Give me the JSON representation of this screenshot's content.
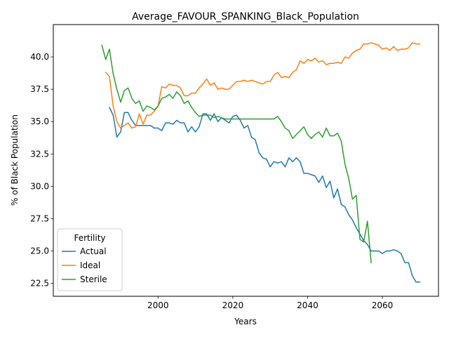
{
  "chart_data": {
    "type": "line",
    "title": "Average_FAVOUR_SPANKING_Black_Population",
    "xlabel": "Years",
    "ylabel": "% of Black Population",
    "xlim": [
      1972,
      2075
    ],
    "ylim": [
      21.5,
      42.5
    ],
    "xticks": [
      2000,
      2020,
      2040,
      2060
    ],
    "yticks": [
      22.5,
      25.0,
      27.5,
      30.0,
      32.5,
      35.0,
      37.5,
      40.0
    ],
    "grid": false,
    "legend": {
      "title": "Fertility",
      "position": "lower-left"
    },
    "series": [
      {
        "name": "Actual",
        "color": "#1f77b4",
        "x": [
          1987,
          1988,
          1989,
          1990,
          1991,
          1992,
          1993,
          1994,
          1995,
          1996,
          1997,
          1998,
          1999,
          2000,
          2001,
          2002,
          2003,
          2004,
          2005,
          2006,
          2007,
          2008,
          2009,
          2010,
          2011,
          2012,
          2013,
          2014,
          2015,
          2016,
          2017,
          2018,
          2019,
          2020,
          2021,
          2022,
          2023,
          2024,
          2025,
          2026,
          2027,
          2028,
          2029,
          2030,
          2031,
          2032,
          2033,
          2034,
          2035,
          2036,
          2037,
          2038,
          2039,
          2040,
          2041,
          2042,
          2043,
          2044,
          2045,
          2046,
          2047,
          2048,
          2049,
          2050,
          2051,
          2052,
          2053,
          2054,
          2055,
          2056,
          2057,
          2058,
          2059,
          2060,
          2061,
          2062,
          2063,
          2064,
          2065,
          2066,
          2067,
          2068,
          2069,
          2070
        ],
        "values": [
          36.1,
          35.5,
          33.8,
          34.2,
          35.7,
          35.7,
          35.1,
          34.7,
          34.7,
          34.7,
          34.7,
          34.7,
          34.5,
          34.5,
          34.3,
          34.9,
          34.9,
          34.8,
          35.1,
          34.9,
          34.9,
          34.2,
          34.6,
          34.2,
          34.6,
          35.6,
          35.6,
          35.1,
          35.6,
          35.0,
          35.3,
          35.1,
          34.9,
          35.4,
          35.5,
          35.1,
          34.5,
          34.7,
          33.8,
          33.6,
          32.6,
          32.2,
          32.1,
          31.5,
          31.9,
          31.8,
          31.9,
          31.5,
          32.2,
          31.9,
          32.2,
          31.9,
          31.0,
          31.0,
          30.9,
          30.8,
          30.3,
          30.8,
          29.9,
          30.4,
          29.1,
          29.8,
          28.6,
          28.4,
          27.8,
          27.4,
          26.8,
          26.3,
          25.8,
          25.5,
          25.0,
          25.0,
          25.0,
          24.8,
          25.0,
          25.0,
          25.1,
          25.0,
          24.8,
          24.1,
          24.1,
          23.1,
          22.6,
          22.6
        ]
      },
      {
        "name": "Ideal",
        "color": "#ff7f0e",
        "x": [
          1986,
          1987,
          1988,
          1989,
          1990,
          1991,
          1992,
          1993,
          1994,
          1995,
          1996,
          1997,
          1998,
          1999,
          2000,
          2001,
          2002,
          2003,
          2004,
          2005,
          2006,
          2007,
          2008,
          2009,
          2010,
          2011,
          2012,
          2013,
          2014,
          2015,
          2016,
          2017,
          2018,
          2019,
          2020,
          2021,
          2022,
          2023,
          2024,
          2025,
          2026,
          2027,
          2028,
          2029,
          2030,
          2031,
          2032,
          2033,
          2034,
          2035,
          2036,
          2037,
          2038,
          2039,
          2040,
          2041,
          2042,
          2043,
          2044,
          2045,
          2046,
          2047,
          2048,
          2049,
          2050,
          2051,
          2052,
          2053,
          2054,
          2055,
          2056,
          2057,
          2058,
          2059,
          2060,
          2061,
          2062,
          2063,
          2064,
          2065,
          2066,
          2067,
          2068,
          2069,
          2070
        ],
        "values": [
          38.8,
          38.5,
          36.2,
          35.0,
          34.5,
          34.7,
          34.9,
          34.5,
          34.6,
          35.6,
          34.8,
          35.5,
          35.5,
          35.8,
          36.2,
          37.7,
          37.6,
          37.9,
          37.8,
          37.8,
          37.6,
          37.0,
          37.0,
          37.2,
          37.2,
          37.6,
          37.9,
          38.3,
          37.8,
          38.0,
          37.5,
          37.6,
          37.5,
          37.5,
          37.8,
          38.1,
          38.1,
          38.2,
          38.1,
          38.2,
          38.1,
          38.0,
          37.9,
          38.1,
          38.1,
          38.6,
          38.8,
          38.4,
          38.5,
          38.4,
          38.8,
          39.0,
          39.7,
          39.5,
          39.8,
          39.7,
          39.9,
          39.6,
          39.7,
          39.4,
          39.5,
          39.5,
          39.6,
          39.5,
          40.0,
          39.9,
          40.3,
          40.5,
          40.6,
          41.0,
          41.0,
          41.1,
          41.0,
          40.9,
          40.6,
          40.7,
          40.5,
          40.8,
          40.5,
          40.6,
          40.6,
          40.7,
          41.1,
          41.0,
          41.0
        ]
      },
      {
        "name": "Sterile",
        "color": "#2ca02c",
        "x": [
          1985,
          1986,
          1987,
          1988,
          1989,
          1990,
          1991,
          1992,
          1993,
          1994,
          1995,
          1996,
          1997,
          1998,
          1999,
          2000,
          2001,
          2002,
          2003,
          2004,
          2005,
          2006,
          2007,
          2008,
          2009,
          2010,
          2011,
          2012,
          2013,
          2014,
          2015,
          2016,
          2017,
          2018,
          2019,
          2020,
          2021,
          2022,
          2023,
          2024,
          2025,
          2026,
          2027,
          2028,
          2029,
          2030,
          2031,
          2032,
          2033,
          2034,
          2035,
          2036,
          2037,
          2038,
          2039,
          2040,
          2041,
          2042,
          2043,
          2044,
          2045,
          2046,
          2047,
          2048,
          2049,
          2050,
          2051,
          2052,
          2053,
          2054,
          2055,
          2056,
          2057
        ],
        "values": [
          40.9,
          39.8,
          40.6,
          38.7,
          37.5,
          36.5,
          37.4,
          37.6,
          36.8,
          36.4,
          36.6,
          35.8,
          36.2,
          36.1,
          35.9,
          36.2,
          36.8,
          36.9,
          37.1,
          36.8,
          37.3,
          37.0,
          36.4,
          36.6,
          36.1,
          35.7,
          35.4,
          35.5,
          35.5,
          35.5,
          35.3,
          35.4,
          35.3,
          35.2,
          35.2,
          35.2,
          35.2,
          35.2,
          35.2,
          35.2,
          35.2,
          35.2,
          35.2,
          35.2,
          35.2,
          35.2,
          35.2,
          35.4,
          35.0,
          34.5,
          34.3,
          33.7,
          34.0,
          34.3,
          34.6,
          34.0,
          33.7,
          34.0,
          34.2,
          33.8,
          34.5,
          33.9,
          33.9,
          34.1,
          33.5,
          31.7,
          30.6,
          29.0,
          29.3,
          25.9,
          25.7,
          27.3,
          24.1
        ]
      }
    ]
  }
}
